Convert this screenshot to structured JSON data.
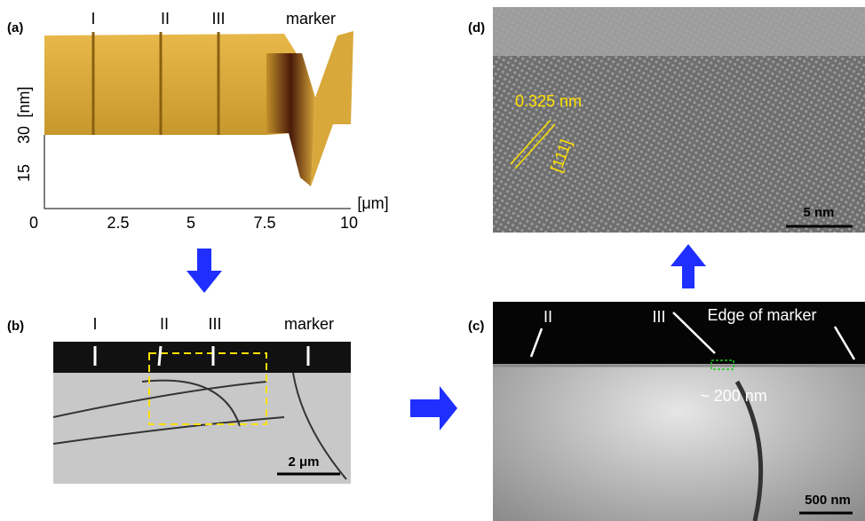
{
  "panels": [
    {
      "label": "(a)",
      "top_labels": [
        "I",
        "II",
        "III",
        "marker"
      ],
      "y_axis": [
        "30",
        "[nm]",
        "15"
      ],
      "x_axis": [
        "0",
        "2.5",
        "5",
        "7.5",
        "10",
        "[μm]"
      ]
    },
    {
      "label": "(b)",
      "top_labels": [
        "I",
        "II",
        "III",
        "marker"
      ],
      "scale_bar": "2 μm"
    },
    {
      "label": "(c)",
      "annotations": [
        "II",
        "III",
        "Edge of marker",
        "~ 200 nm"
      ],
      "scale_bar": "500 nm"
    },
    {
      "label": "(d)",
      "annotations": [
        "0.325 nm",
        "[111]"
      ],
      "scale_bar": "5 nm"
    }
  ]
}
